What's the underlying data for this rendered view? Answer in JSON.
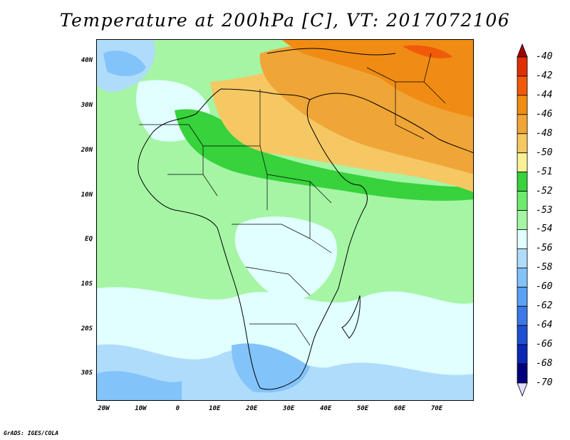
{
  "title": "Temperature at 200hPa [C], VT: 2017072106",
  "footer": "GrADS: IGES/COLA",
  "map": {
    "lat_labels": [
      "40N",
      "30N",
      "20N",
      "10N",
      "EQ",
      "10S",
      "20S",
      "30S"
    ],
    "lon_labels": [
      "20W",
      "10W",
      "0",
      "10E",
      "20E",
      "30E",
      "40E",
      "50E",
      "60E",
      "70E"
    ],
    "lat_values": [
      40,
      30,
      20,
      10,
      0,
      -10,
      -20,
      -30
    ],
    "lon_values": [
      -20,
      -10,
      0,
      10,
      20,
      30,
      40,
      50,
      60,
      70
    ],
    "lon_range": [
      -22,
      80
    ],
    "lat_range": [
      -36,
      45
    ]
  },
  "colorbar": {
    "labels": [
      "-40",
      "-42",
      "-44",
      "-46",
      "-48",
      "-50",
      "-51",
      "-52",
      "-53",
      "-54",
      "-56",
      "-58",
      "-60",
      "-62",
      "-64",
      "-66",
      "-68",
      "-70"
    ],
    "colors": [
      "#a00000",
      "#e03000",
      "#f05a0a",
      "#f08c14",
      "#f0a537",
      "#f5c864",
      "#faf096",
      "#37d23c",
      "#6eeb6e",
      "#a5f5a5",
      "#e1ffff",
      "#afdcfa",
      "#82c3fa",
      "#5aa0f5",
      "#3c78e6",
      "#1e50d2",
      "#0a28b4",
      "#00007d",
      "#e6dcff"
    ]
  },
  "field_colors": {
    "land_background": "#a5f5a5",
    "green_dark": "#6eeb6e",
    "green_strong": "#37d23c",
    "light_cyan": "#e1ffff",
    "light_blue": "#afdcfa",
    "blue": "#82c3fa",
    "pale_yellow": "#f5c864",
    "orange_light": "#f0a537",
    "orange": "#f08c14"
  }
}
